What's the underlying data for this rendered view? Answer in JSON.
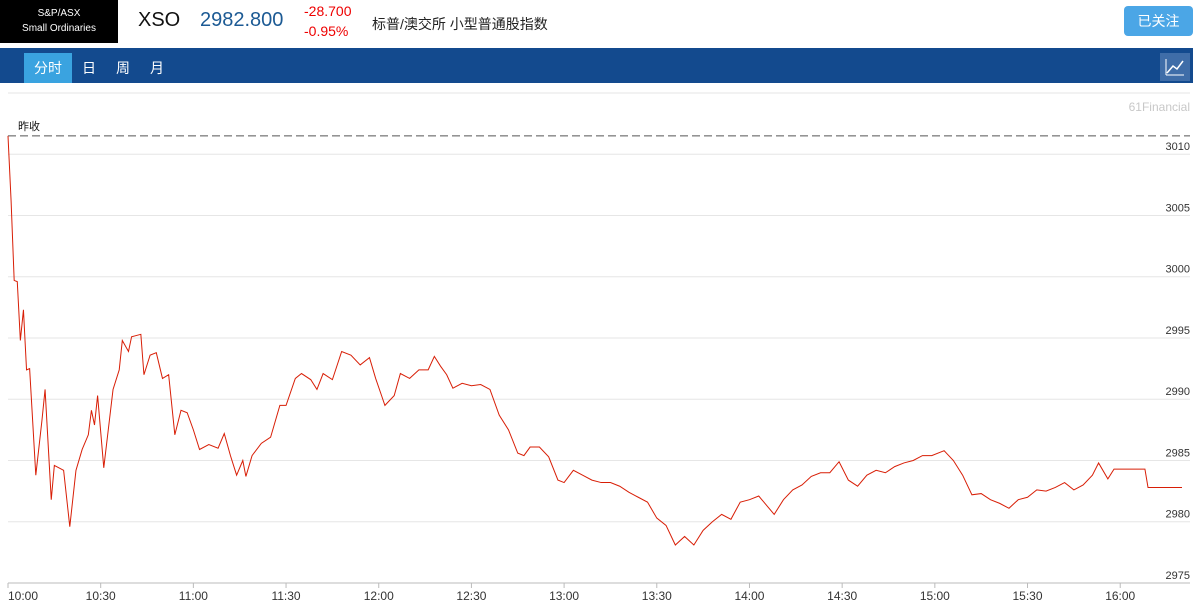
{
  "header": {
    "logo_line1": "S&P/ASX",
    "logo_line2": "Small Ordinaries",
    "symbol": "XSO",
    "price": "2982.800",
    "change": "-28.700",
    "change_pct": "-0.95%",
    "name": "标普/澳交所 小型普通股指数",
    "follow_button": "已关注"
  },
  "tabs": [
    "分时",
    "日",
    "周",
    "月"
  ],
  "watermark": "61Financial",
  "chart_data": {
    "type": "line",
    "reference": {
      "label": "昨收",
      "value": 3011.5
    },
    "xlim": [
      "10:00",
      "16:20"
    ],
    "xticks": [
      "10:00",
      "10:30",
      "11:00",
      "11:30",
      "12:00",
      "12:30",
      "13:00",
      "13:30",
      "14:00",
      "14:30",
      "15:00",
      "15:30",
      "16:00"
    ],
    "ylim": [
      2975,
      3015
    ],
    "yticks": [
      2975,
      2980,
      2985,
      2990,
      2995,
      3000,
      3005,
      3010
    ],
    "grid": true,
    "x": [
      "10:00",
      "10:01",
      "10:02",
      "10:03",
      "10:04",
      "10:05",
      "10:06",
      "10:07",
      "10:09",
      "10:11",
      "10:12",
      "10:14",
      "10:15",
      "10:18",
      "10:20",
      "10:22",
      "10:24",
      "10:26",
      "10:27",
      "10:28",
      "10:29",
      "10:31",
      "10:34",
      "10:36",
      "10:37",
      "10:39",
      "10:40",
      "10:43",
      "10:44",
      "10:46",
      "10:48",
      "10:50",
      "10:52",
      "10:54",
      "10:56",
      "10:58",
      "11:00",
      "11:02",
      "11:05",
      "11:08",
      "11:10",
      "11:12",
      "11:14",
      "11:16",
      "11:17",
      "11:19",
      "11:22",
      "11:25",
      "11:28",
      "11:30",
      "11:33",
      "11:35",
      "11:38",
      "11:40",
      "11:42",
      "11:45",
      "11:48",
      "11:51",
      "11:54",
      "11:57",
      "11:59",
      "12:02",
      "12:05",
      "12:07",
      "12:10",
      "12:13",
      "12:16",
      "12:18",
      "12:20",
      "12:22",
      "12:24",
      "12:27",
      "12:30",
      "12:33",
      "12:36",
      "12:39",
      "12:42",
      "12:45",
      "12:47",
      "12:49",
      "12:52",
      "12:55",
      "12:58",
      "13:00",
      "13:03",
      "13:06",
      "13:09",
      "13:12",
      "13:15",
      "13:18",
      "13:21",
      "13:24",
      "13:27",
      "13:30",
      "13:33",
      "13:36",
      "13:39",
      "13:42",
      "13:45",
      "13:48",
      "13:51",
      "13:54",
      "13:57",
      "14:00",
      "14:03",
      "14:06",
      "14:08",
      "14:11",
      "14:14",
      "14:17",
      "14:20",
      "14:23",
      "14:26",
      "14:29",
      "14:32",
      "14:35",
      "14:38",
      "14:41",
      "14:44",
      "14:47",
      "14:50",
      "14:53",
      "14:56",
      "14:59",
      "15:03",
      "15:06",
      "15:09",
      "15:12",
      "15:15",
      "15:18",
      "15:21",
      "15:24",
      "15:27",
      "15:30",
      "15:33",
      "15:36",
      "15:39",
      "15:42",
      "15:45",
      "15:48",
      "15:51",
      "15:53",
      "15:56",
      "15:58",
      "16:03",
      "16:08",
      "16:09",
      "16:20"
    ],
    "series": [
      {
        "name": "XSO",
        "color": "#d81e06",
        "values": [
          3011.5,
          3006.2,
          2999.7,
          2999.6,
          2994.8,
          2997.3,
          2992.4,
          2992.5,
          2983.8,
          2988.3,
          2990.8,
          2981.8,
          2984.6,
          2984.2,
          2979.6,
          2984.2,
          2985.9,
          2987.1,
          2989.1,
          2987.9,
          2990.3,
          2984.4,
          2990.8,
          2992.4,
          2994.8,
          2993.9,
          2995.1,
          2995.3,
          2992.0,
          2993.6,
          2993.8,
          2991.7,
          2992.0,
          2987.1,
          2989.1,
          2988.9,
          2987.5,
          2985.9,
          2986.3,
          2986.0,
          2987.2,
          2985.4,
          2983.8,
          2985.0,
          2983.7,
          2985.4,
          2986.4,
          2986.9,
          2989.5,
          2989.5,
          2991.7,
          2992.1,
          2991.6,
          2990.8,
          2992.1,
          2991.6,
          2993.9,
          2993.6,
          2992.8,
          2993.4,
          2991.7,
          2989.5,
          2990.3,
          2992.1,
          2991.7,
          2992.4,
          2992.4,
          2993.5,
          2992.7,
          2992.0,
          2990.9,
          2991.3,
          2991.1,
          2991.2,
          2990.8,
          2988.7,
          2987.5,
          2985.6,
          2985.4,
          2986.1,
          2986.1,
          2985.3,
          2983.4,
          2983.2,
          2984.2,
          2983.8,
          2983.4,
          2983.2,
          2983.2,
          2982.9,
          2982.4,
          2982.0,
          2981.6,
          2980.3,
          2979.7,
          2978.1,
          2978.8,
          2978.1,
          2979.3,
          2980.0,
          2980.6,
          2980.2,
          2981.6,
          2981.8,
          2982.1,
          2981.2,
          2980.6,
          2981.8,
          2982.6,
          2983.0,
          2983.7,
          2984.0,
          2984.0,
          2984.9,
          2983.4,
          2982.9,
          2983.8,
          2984.2,
          2984.0,
          2984.5,
          2984.8,
          2985.0,
          2985.4,
          2985.4,
          2985.8,
          2985.0,
          2983.8,
          2982.2,
          2982.3,
          2981.8,
          2981.5,
          2981.1,
          2981.8,
          2982.0,
          2982.6,
          2982.5,
          2982.8,
          2983.2,
          2982.6,
          2983.0,
          2983.8,
          2984.8,
          2983.5,
          2984.3,
          2984.3,
          2984.3,
          2982.8,
          2982.8
        ]
      }
    ]
  }
}
